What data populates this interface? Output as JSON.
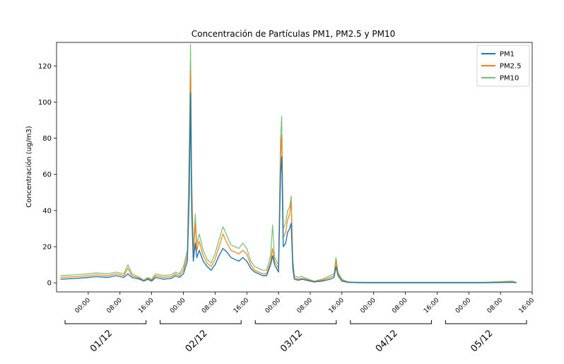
{
  "chart_data": {
    "type": "line",
    "title": "Concentración de Partículas PM1, PM2.5 y PM10",
    "ylabel": "Concentración (ug/m3)",
    "xlabel": "",
    "ylim": [
      -5,
      133
    ],
    "xlim_hours": [
      -8,
      112
    ],
    "yticks": [
      0,
      20,
      40,
      60,
      80,
      100,
      120
    ],
    "xticks": [
      {
        "h": 0,
        "label": "00:00"
      },
      {
        "h": 8,
        "label": "08:00"
      },
      {
        "h": 16,
        "label": "16:00"
      },
      {
        "h": 24,
        "label": "00:00"
      },
      {
        "h": 32,
        "label": "08:00"
      },
      {
        "h": 40,
        "label": "16:00"
      },
      {
        "h": 48,
        "label": "00:00"
      },
      {
        "h": 56,
        "label": "08:00"
      },
      {
        "h": 64,
        "label": "16:00"
      },
      {
        "h": 72,
        "label": "00:00"
      },
      {
        "h": 80,
        "label": "08:00"
      },
      {
        "h": 88,
        "label": "16:00"
      },
      {
        "h": 96,
        "label": "00:00"
      },
      {
        "h": 104,
        "label": "08:00"
      },
      {
        "h": 112,
        "label": "16:00"
      }
    ],
    "day_groups": [
      {
        "label": "01/12",
        "from": -8,
        "to": 16
      },
      {
        "label": "02/12",
        "from": 16,
        "to": 40
      },
      {
        "label": "03/12",
        "from": 40,
        "to": 64
      },
      {
        "label": "04/12",
        "from": 64,
        "to": 88
      },
      {
        "label": "05/12",
        "from": 88,
        "to": 112
      }
    ],
    "legend_position": "top-right",
    "grid": false,
    "series": [
      {
        "name": "PM1",
        "color": "#1f77b4",
        "points": [
          [
            -7,
            2
          ],
          [
            -3,
            2.5
          ],
          [
            0,
            3
          ],
          [
            2,
            3.5
          ],
          [
            5,
            3
          ],
          [
            7,
            4
          ],
          [
            9,
            3
          ],
          [
            10,
            5
          ],
          [
            11,
            3
          ],
          [
            13,
            2
          ],
          [
            14,
            1
          ],
          [
            15,
            2
          ],
          [
            16,
            1
          ],
          [
            17,
            3
          ],
          [
            19,
            2
          ],
          [
            21,
            2.5
          ],
          [
            22,
            4
          ],
          [
            23,
            3
          ],
          [
            24,
            5
          ],
          [
            25,
            12
          ],
          [
            25.5,
            50
          ],
          [
            25.8,
            105
          ],
          [
            26.1,
            40
          ],
          [
            26.5,
            12
          ],
          [
            27,
            22
          ],
          [
            27.4,
            14
          ],
          [
            28,
            18
          ],
          [
            29,
            12
          ],
          [
            30,
            9
          ],
          [
            31,
            7
          ],
          [
            32,
            10
          ],
          [
            33,
            15
          ],
          [
            34,
            19
          ],
          [
            35,
            17
          ],
          [
            36,
            14
          ],
          [
            37,
            13
          ],
          [
            38,
            12
          ],
          [
            39,
            14
          ],
          [
            40,
            12
          ],
          [
            41,
            8
          ],
          [
            42,
            6
          ],
          [
            43,
            5
          ],
          [
            44,
            4
          ],
          [
            45,
            4
          ],
          [
            46,
            10
          ],
          [
            46.5,
            15
          ],
          [
            47,
            10
          ],
          [
            48,
            6
          ],
          [
            48.5,
            60
          ],
          [
            48.8,
            70
          ],
          [
            49.2,
            20
          ],
          [
            49.8,
            22
          ],
          [
            50.3,
            28
          ],
          [
            50.8,
            30
          ],
          [
            51.2,
            33
          ],
          [
            51.6,
            8
          ],
          [
            52,
            2
          ],
          [
            53,
            1.5
          ],
          [
            54,
            2
          ],
          [
            55,
            1.5
          ],
          [
            57,
            0.5
          ],
          [
            59,
            1
          ],
          [
            61,
            2
          ],
          [
            62,
            3
          ],
          [
            62.5,
            9
          ],
          [
            63,
            4
          ],
          [
            64,
            1
          ],
          [
            65,
            0.5
          ],
          [
            66,
            0.2
          ],
          [
            70,
            0.1
          ],
          [
            88,
            0.1
          ],
          [
            100,
            0.1
          ],
          [
            107,
            0.3
          ],
          [
            108,
            0.1
          ]
        ]
      },
      {
        "name": "PM2.5",
        "color": "#ff7f0e",
        "points": [
          [
            -7,
            3
          ],
          [
            -3,
            3.5
          ],
          [
            0,
            4
          ],
          [
            2,
            4.5
          ],
          [
            5,
            4
          ],
          [
            7,
            5
          ],
          [
            9,
            4
          ],
          [
            10,
            8
          ],
          [
            11,
            4
          ],
          [
            13,
            2.5
          ],
          [
            14,
            1
          ],
          [
            15,
            2.5
          ],
          [
            16,
            1.5
          ],
          [
            17,
            4
          ],
          [
            19,
            3
          ],
          [
            21,
            3.5
          ],
          [
            22,
            5
          ],
          [
            23,
            4
          ],
          [
            24,
            7
          ],
          [
            25,
            15
          ],
          [
            25.5,
            60
          ],
          [
            25.8,
            117
          ],
          [
            26.1,
            50
          ],
          [
            26.5,
            15
          ],
          [
            27,
            33
          ],
          [
            27.4,
            18
          ],
          [
            28,
            23
          ],
          [
            29,
            15
          ],
          [
            30,
            11
          ],
          [
            31,
            9
          ],
          [
            32,
            13
          ],
          [
            33,
            20
          ],
          [
            34,
            27
          ],
          [
            35,
            22
          ],
          [
            36,
            18
          ],
          [
            37,
            17
          ],
          [
            38,
            16
          ],
          [
            39,
            18
          ],
          [
            40,
            16
          ],
          [
            41,
            10
          ],
          [
            42,
            7
          ],
          [
            43,
            6
          ],
          [
            44,
            5
          ],
          [
            45,
            5
          ],
          [
            46,
            12
          ],
          [
            46.5,
            19
          ],
          [
            47,
            12
          ],
          [
            48,
            8
          ],
          [
            48.5,
            70
          ],
          [
            48.8,
            82
          ],
          [
            49.2,
            25
          ],
          [
            49.8,
            28
          ],
          [
            50.3,
            35
          ],
          [
            50.8,
            38
          ],
          [
            51.2,
            45
          ],
          [
            51.6,
            10
          ],
          [
            52,
            3
          ],
          [
            53,
            2
          ],
          [
            54,
            2.5
          ],
          [
            55,
            2
          ],
          [
            57,
            0.7
          ],
          [
            59,
            1.5
          ],
          [
            61,
            3
          ],
          [
            62,
            4
          ],
          [
            62.5,
            12
          ],
          [
            63,
            5
          ],
          [
            64,
            1.5
          ],
          [
            65,
            0.7
          ],
          [
            66,
            0.3
          ],
          [
            70,
            0.2
          ],
          [
            88,
            0.2
          ],
          [
            100,
            0.2
          ],
          [
            107,
            0.5
          ],
          [
            108,
            0.2
          ]
        ]
      },
      {
        "name": "PM10",
        "color": "#2ca02c",
        "points": [
          [
            -7,
            4
          ],
          [
            -3,
            4.5
          ],
          [
            0,
            5
          ],
          [
            2,
            5.5
          ],
          [
            5,
            5
          ],
          [
            7,
            6
          ],
          [
            9,
            5
          ],
          [
            10,
            10
          ],
          [
            11,
            5
          ],
          [
            13,
            3
          ],
          [
            14,
            1.5
          ],
          [
            15,
            3
          ],
          [
            16,
            2
          ],
          [
            17,
            5
          ],
          [
            19,
            4
          ],
          [
            21,
            4.5
          ],
          [
            22,
            6
          ],
          [
            23,
            5
          ],
          [
            24,
            9
          ],
          [
            25,
            18
          ],
          [
            25.5,
            80
          ],
          [
            25.8,
            132
          ],
          [
            26.1,
            60
          ],
          [
            26.5,
            18
          ],
          [
            27,
            38
          ],
          [
            27.4,
            21
          ],
          [
            28,
            27
          ],
          [
            29,
            18
          ],
          [
            30,
            13
          ],
          [
            31,
            11
          ],
          [
            32,
            16
          ],
          [
            33,
            24
          ],
          [
            34,
            31
          ],
          [
            35,
            26
          ],
          [
            36,
            21
          ],
          [
            37,
            20
          ],
          [
            38,
            19
          ],
          [
            39,
            22
          ],
          [
            40,
            19
          ],
          [
            41,
            12
          ],
          [
            42,
            9
          ],
          [
            43,
            8
          ],
          [
            44,
            7
          ],
          [
            45,
            7
          ],
          [
            46,
            15
          ],
          [
            46.5,
            32
          ],
          [
            47,
            14
          ],
          [
            48,
            10
          ],
          [
            48.5,
            80
          ],
          [
            48.8,
            92
          ],
          [
            49.2,
            30
          ],
          [
            49.8,
            33
          ],
          [
            50.3,
            40
          ],
          [
            50.8,
            42
          ],
          [
            51.2,
            48
          ],
          [
            51.6,
            13
          ],
          [
            52,
            4
          ],
          [
            53,
            3
          ],
          [
            54,
            3.5
          ],
          [
            55,
            2.5
          ],
          [
            57,
            1
          ],
          [
            59,
            2
          ],
          [
            61,
            4
          ],
          [
            62,
            5
          ],
          [
            62.5,
            14
          ],
          [
            63,
            6
          ],
          [
            64,
            2
          ],
          [
            65,
            1
          ],
          [
            66,
            0.5
          ],
          [
            70,
            0.3
          ],
          [
            88,
            0.3
          ],
          [
            100,
            0.3
          ],
          [
            107,
            1
          ],
          [
            108,
            0.3
          ]
        ]
      }
    ]
  }
}
